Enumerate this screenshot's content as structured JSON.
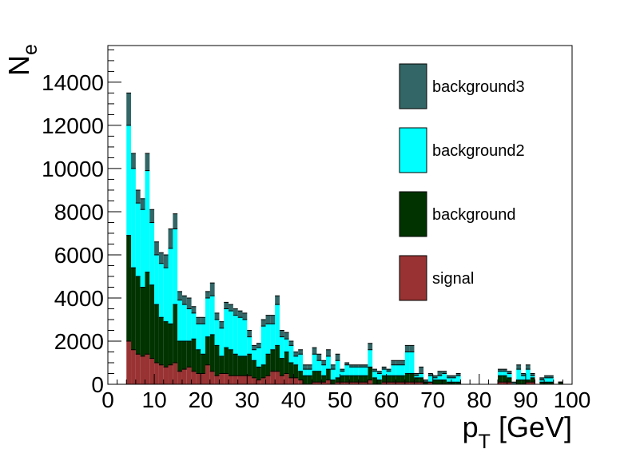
{
  "chart_data": {
    "type": "bar",
    "stacked": true,
    "histogram": true,
    "bin_width": 1,
    "x_start": 4,
    "xlim": [
      0,
      100
    ],
    "ylim": [
      0,
      15700
    ],
    "x_ticks": [
      0,
      10,
      20,
      30,
      40,
      50,
      60,
      70,
      80,
      90,
      100
    ],
    "y_ticks": [
      0,
      2000,
      4000,
      6000,
      8000,
      10000,
      12000,
      14000
    ],
    "xlabel": {
      "main": "p",
      "sub": "T",
      "unit": "[GeV]"
    },
    "ylabel": {
      "main": "N",
      "sub": "e"
    },
    "legend_position": "top-right",
    "grid": false,
    "series": [
      {
        "name": "signal",
        "color": "#993333",
        "values": [
          2000,
          1600,
          1400,
          1300,
          1400,
          1200,
          1000,
          900,
          800,
          900,
          1000,
          600,
          700,
          800,
          600,
          500,
          500,
          900,
          600,
          400,
          500,
          500,
          400,
          400,
          400,
          400,
          400,
          300,
          200,
          300,
          400,
          600,
          600,
          400,
          500,
          300,
          300,
          200,
          0,
          0,
          100,
          100,
          100,
          200,
          0,
          100,
          100,
          100,
          100,
          100,
          100,
          100,
          200,
          0,
          0,
          100,
          100,
          100,
          100,
          100,
          100,
          100,
          100,
          100,
          0,
          100,
          0,
          0,
          0,
          0,
          0,
          0,
          0,
          0,
          0,
          0,
          0,
          0,
          0,
          0,
          100,
          100,
          100,
          0,
          0,
          0,
          100,
          100,
          0,
          0,
          0,
          0,
          0,
          0
        ]
      },
      {
        "name": "background",
        "color": "#003300",
        "values": [
          4900,
          3800,
          3600,
          3200,
          3800,
          3400,
          2700,
          2200,
          2100,
          1900,
          2700,
          1400,
          1300,
          1200,
          1500,
          1100,
          900,
          1300,
          1700,
          1400,
          800,
          1200,
          1200,
          1000,
          900,
          900,
          1000,
          800,
          600,
          600,
          1000,
          1000,
          1200,
          800,
          1000,
          700,
          600,
          400,
          400,
          400,
          500,
          500,
          300,
          500,
          200,
          200,
          300,
          300,
          300,
          300,
          300,
          300,
          600,
          300,
          200,
          300,
          300,
          300,
          300,
          300,
          400,
          400,
          200,
          200,
          100,
          0,
          200,
          200,
          200,
          100,
          100,
          100,
          0,
          0,
          0,
          0,
          0,
          0,
          0,
          0,
          300,
          300,
          200,
          0,
          200,
          200,
          100,
          200,
          0,
          100,
          100,
          100,
          0,
          100
        ]
      },
      {
        "name": "background2",
        "color": "#00ffff",
        "values": [
          5100,
          4600,
          3400,
          3600,
          4700,
          2900,
          2300,
          2500,
          2500,
          3500,
          3500,
          1900,
          1700,
          1500,
          1200,
          1200,
          1400,
          1800,
          1800,
          1200,
          1300,
          1800,
          1800,
          1800,
          1800,
          1700,
          800,
          500,
          900,
          1800,
          1400,
          1200,
          1900,
          1000,
          600,
          800,
          400,
          800,
          300,
          300,
          800,
          500,
          500,
          600,
          500,
          800,
          200,
          500,
          400,
          400,
          400,
          400,
          800,
          300,
          300,
          300,
          200,
          500,
          500,
          500,
          1000,
          1000,
          100,
          200,
          0,
          300,
          100,
          200,
          300,
          200,
          200,
          300,
          0,
          0,
          0,
          0,
          0,
          0,
          0,
          0,
          200,
          200,
          200,
          0,
          500,
          200,
          500,
          100,
          0,
          100,
          200,
          200,
          0,
          0
        ]
      },
      {
        "name": "background3",
        "color": "#336666",
        "values": [
          1500,
          700,
          600,
          500,
          800,
          600,
          600,
          500,
          600,
          900,
          700,
          400,
          400,
          500,
          300,
          300,
          300,
          300,
          600,
          300,
          300,
          300,
          300,
          300,
          300,
          300,
          300,
          200,
          200,
          300,
          400,
          400,
          400,
          300,
          300,
          200,
          200,
          200,
          200,
          200,
          300,
          300,
          200,
          300,
          200,
          300,
          100,
          100,
          100,
          100,
          100,
          100,
          300,
          100,
          100,
          100,
          100,
          200,
          200,
          200,
          300,
          300,
          100,
          300,
          100,
          100,
          100,
          200,
          100,
          100,
          100,
          100,
          0,
          0,
          0,
          0,
          0,
          0,
          0,
          0,
          100,
          100,
          100,
          100,
          200,
          100,
          200,
          100,
          0,
          100,
          100,
          100,
          0,
          0
        ]
      }
    ]
  }
}
